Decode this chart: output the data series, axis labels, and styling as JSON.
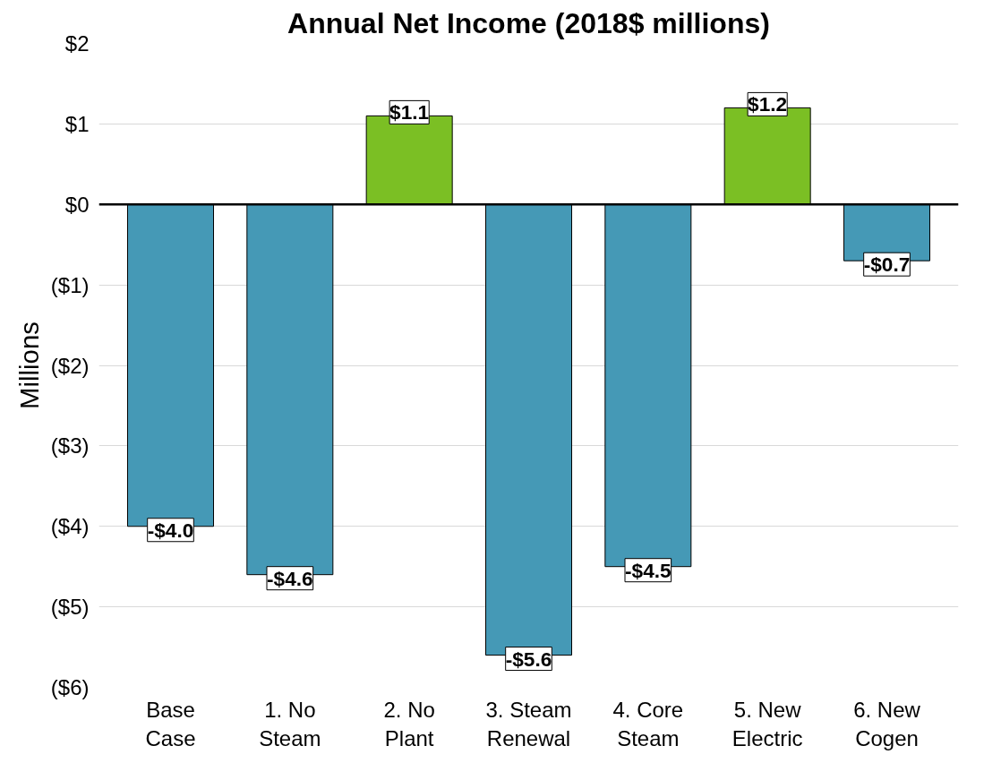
{
  "chart_data": {
    "type": "bar",
    "title": "Annual Net Income (2018$ millions)",
    "ylabel": "Millions",
    "categories": [
      "Base Case",
      "1. No Steam",
      "2. No Plant",
      "3. Steam Renewal",
      "4. Core Steam",
      "5. New Electric",
      "6. New Cogen"
    ],
    "values": [
      -4.0,
      -4.6,
      1.1,
      -5.6,
      -4.5,
      1.2,
      -0.7
    ],
    "colors": [
      "#4599b6",
      "#4599b6",
      "#7bbf24",
      "#4599b6",
      "#4599b6",
      "#7bbf24",
      "#4599b6"
    ],
    "value_labels": [
      "-$4.0",
      "-$4.6",
      "$1.1",
      "-$5.6",
      "-$4.5",
      "$1.2",
      "-$0.7"
    ],
    "ylim": [
      -6,
      2
    ],
    "yticks": [
      {
        "value": -6,
        "label": "($6)"
      },
      {
        "value": -5,
        "label": "($5)"
      },
      {
        "value": -4,
        "label": "($4)"
      },
      {
        "value": -3,
        "label": "($3)"
      },
      {
        "value": -2,
        "label": "($2)"
      },
      {
        "value": -1,
        "label": "($1)"
      },
      {
        "value": 0,
        "label": "$0"
      },
      {
        "value": 1,
        "label": "$1"
      },
      {
        "value": 2,
        "label": "$2"
      }
    ],
    "grid": "y"
  }
}
